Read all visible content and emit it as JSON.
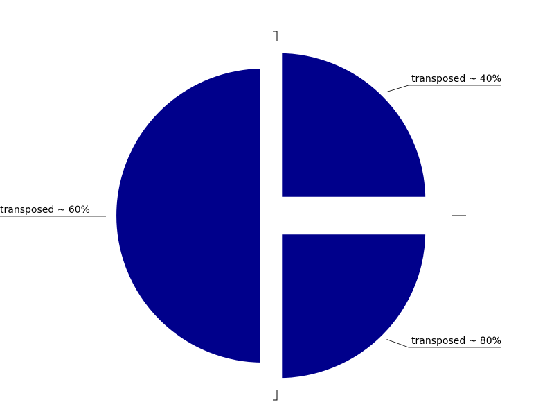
{
  "chart_data": {
    "type": "pie",
    "title": "",
    "slices": [
      {
        "label": "transposed ~ 40%",
        "value": 25,
        "exploded": true
      },
      {
        "label": "transposed ~ 80%",
        "value": 25,
        "exploded": true
      },
      {
        "label": "transposed ~ 60%",
        "value": 50,
        "exploded": false
      }
    ],
    "colors": {
      "slice": "#00008b",
      "background": "#ffffff",
      "text": "#000000"
    },
    "start_angle": "top (12 o'clock)",
    "direction": "clockwise",
    "legend": "none"
  }
}
